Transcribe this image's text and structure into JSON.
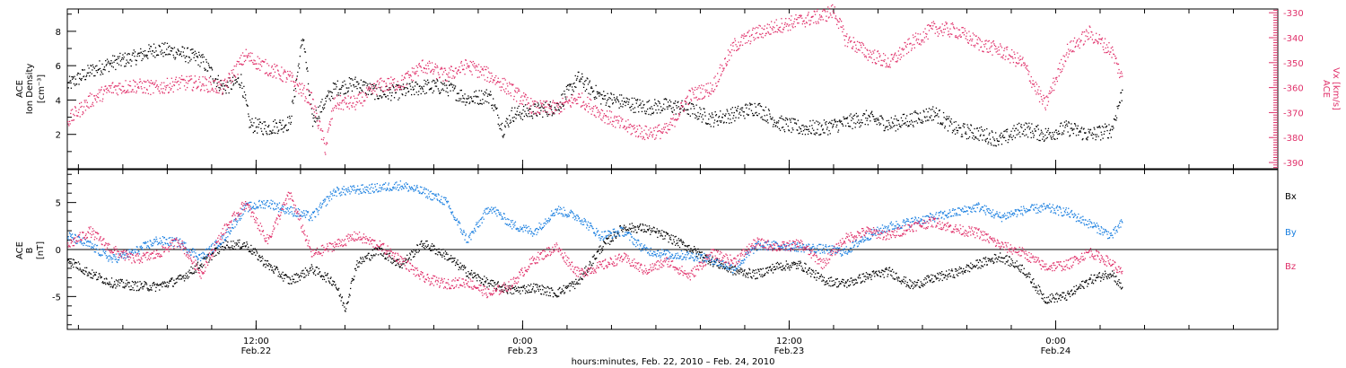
{
  "colors": {
    "black": "#000000",
    "red": "#e0306a",
    "blue": "#1a7fe0"
  },
  "xaxis": {
    "title": "hours:minutes, Feb. 22, 2010 – Feb. 24, 2010",
    "range_hours": [
      0,
      54.5
    ],
    "major_ticks": [
      {
        "hour": 8.5,
        "time": "12:00",
        "date": "Feb.22"
      },
      {
        "hour": 20.5,
        "time": "0:00",
        "date": "Feb.23"
      },
      {
        "hour": 32.5,
        "time": "12:00",
        "date": "Feb.23"
      },
      {
        "hour": 44.5,
        "time": "0:00",
        "date": "Feb.24"
      }
    ]
  },
  "chart_data": [
    {
      "type": "scatter",
      "panel": "top",
      "ylabel_left": [
        "ACE",
        "Ion Density",
        "[cm⁻³]"
      ],
      "ylabel_right": [
        "ACE",
        "Vx [km/s]"
      ],
      "ylim": [
        0,
        9.3
      ],
      "yticks": [
        2,
        4,
        6,
        8
      ],
      "ylim_right": [
        -392.5,
        -328.5
      ],
      "yticks_right": [
        -330,
        -340,
        -350,
        -360,
        -370,
        -380,
        -390
      ],
      "series": [
        {
          "axis": "left",
          "color": "black",
          "x": [
            0.0,
            0.5,
            1.0,
            2.0,
            3.0,
            4.0,
            5.0,
            6.0,
            7.0,
            7.8,
            8.2,
            9.0,
            10.0,
            10.6,
            11.0,
            12.0,
            13.0,
            14.0,
            15.0,
            16.0,
            17.0,
            18.0,
            19.0,
            19.6,
            20.0,
            21.0,
            22.0,
            23.0,
            24.0,
            25.0,
            26.0,
            27.0,
            28.0,
            29.0,
            30.0,
            31.0,
            32.0,
            33.0,
            34.0,
            35.0,
            36.0,
            37.0,
            38.0,
            39.0,
            40.0,
            41.0,
            42.0,
            43.0,
            44.0,
            45.0,
            46.0,
            47.0,
            47.5
          ],
          "y": [
            4.9,
            5.3,
            5.7,
            6.2,
            6.5,
            7.0,
            6.8,
            6.4,
            4.7,
            5.2,
            2.6,
            2.4,
            2.7,
            7.8,
            2.8,
            4.7,
            5.0,
            4.4,
            4.5,
            4.8,
            4.8,
            4.1,
            4.3,
            2.3,
            3.2,
            3.4,
            3.6,
            5.3,
            4.2,
            3.9,
            3.6,
            3.7,
            3.5,
            2.9,
            3.2,
            3.6,
            2.7,
            2.4,
            2.4,
            2.7,
            3.0,
            2.6,
            2.9,
            3.3,
            2.3,
            2.1,
            1.7,
            2.4,
            2.0,
            2.4,
            2.0,
            2.3,
            4.6
          ]
        },
        {
          "axis": "right",
          "color": "red",
          "x": [
            0.0,
            1.0,
            2.0,
            3.0,
            4.0,
            5.0,
            6.0,
            7.0,
            8.0,
            9.0,
            10.0,
            11.0,
            11.6,
            12.0,
            13.0,
            14.0,
            15.0,
            16.0,
            17.0,
            18.0,
            19.0,
            20.0,
            21.0,
            22.0,
            23.0,
            24.0,
            25.0,
            26.0,
            27.0,
            28.0,
            29.0,
            30.0,
            31.0,
            32.0,
            33.0,
            34.0,
            34.5,
            35.0,
            36.0,
            37.0,
            38.0,
            39.0,
            40.0,
            41.0,
            42.0,
            43.0,
            44.0,
            45.0,
            46.0,
            47.0,
            47.5
          ],
          "y": [
            -373,
            -365,
            -360,
            -359,
            -360,
            -358,
            -358,
            -360,
            -347,
            -352,
            -356,
            -365,
            -384,
            -366,
            -366,
            -359,
            -358,
            -351,
            -355,
            -351,
            -355,
            -361,
            -368,
            -368,
            -364,
            -370,
            -375,
            -378,
            -377,
            -363,
            -360,
            -343,
            -338,
            -335,
            -333,
            -331,
            -329,
            -340,
            -346,
            -350,
            -342,
            -336,
            -337,
            -342,
            -345,
            -350,
            -367,
            -345,
            -338,
            -345,
            -357
          ]
        }
      ]
    },
    {
      "type": "scatter",
      "panel": "bottom",
      "ylabel_left": [
        "ACE",
        "B",
        "[nT]"
      ],
      "ylim": [
        -8.5,
        8.5
      ],
      "yticks": [
        -5,
        0,
        5
      ],
      "zero_line": true,
      "series": [
        {
          "name": "Bx",
          "color": "black",
          "x": [
            0.0,
            1.0,
            2.0,
            3.0,
            4.0,
            5.0,
            6.0,
            7.0,
            8.0,
            9.0,
            10.0,
            11.0,
            12.0,
            12.5,
            13.0,
            14.0,
            15.0,
            16.0,
            17.0,
            18.0,
            19.0,
            20.0,
            21.0,
            22.0,
            23.0,
            24.0,
            25.0,
            26.0,
            27.0,
            28.0,
            29.0,
            30.0,
            31.0,
            32.0,
            33.0,
            34.0,
            35.0,
            36.0,
            37.0,
            38.0,
            39.0,
            40.0,
            41.0,
            42.0,
            43.0,
            44.0,
            45.0,
            46.0,
            47.0,
            47.5
          ],
          "y": [
            -1.0,
            -2.5,
            -3.5,
            -3.8,
            -3.9,
            -3.2,
            -1.5,
            0.5,
            0.6,
            -1.6,
            -3.3,
            -2.0,
            -3.4,
            -6.2,
            -1.5,
            0.0,
            -1.6,
            0.7,
            -0.5,
            -2.4,
            -3.6,
            -4.3,
            -4.0,
            -4.6,
            -3.4,
            0.2,
            2.4,
            2.3,
            1.4,
            0.2,
            -1.2,
            -2.2,
            -2.6,
            -1.7,
            -1.6,
            -3.2,
            -3.6,
            -2.8,
            -2.3,
            -3.8,
            -3.0,
            -2.4,
            -1.5,
            -0.7,
            -2.0,
            -5.2,
            -4.9,
            -3.2,
            -2.4,
            -4.2
          ]
        },
        {
          "name": "By",
          "color": "blue",
          "x": [
            0.0,
            1.0,
            2.0,
            3.0,
            4.0,
            5.0,
            6.0,
            7.0,
            8.0,
            9.0,
            10.0,
            11.0,
            12.0,
            13.0,
            14.0,
            15.0,
            16.0,
            17.0,
            18.0,
            19.0,
            20.0,
            21.0,
            22.0,
            23.0,
            24.0,
            25.0,
            26.0,
            27.0,
            28.0,
            29.0,
            30.0,
            31.0,
            32.0,
            33.0,
            34.0,
            35.0,
            36.0,
            37.0,
            38.0,
            39.0,
            40.0,
            41.0,
            42.0,
            43.0,
            44.0,
            45.0,
            46.0,
            47.0,
            47.5
          ],
          "y": [
            1.5,
            0.5,
            -1.0,
            -0.2,
            1.0,
            0.8,
            -0.8,
            1.2,
            4.5,
            5.0,
            4.2,
            3.5,
            6.2,
            6.4,
            6.6,
            6.9,
            6.2,
            5.2,
            1.0,
            4.6,
            2.7,
            1.9,
            4.3,
            3.5,
            1.5,
            2.0,
            0.0,
            -0.5,
            -0.6,
            -1.0,
            -2.0,
            0.4,
            0.5,
            0.3,
            0.1,
            -0.2,
            1.5,
            2.5,
            3.0,
            3.5,
            4.0,
            4.6,
            3.5,
            4.2,
            4.5,
            4.0,
            2.8,
            1.5,
            3.0
          ]
        },
        {
          "name": "Bz",
          "color": "red",
          "x": [
            0.0,
            1.0,
            2.0,
            3.0,
            4.0,
            5.0,
            6.0,
            7.0,
            8.0,
            9.0,
            10.0,
            11.0,
            12.0,
            13.0,
            14.0,
            15.0,
            16.0,
            17.0,
            18.0,
            19.0,
            20.0,
            21.0,
            22.0,
            23.0,
            24.0,
            25.0,
            26.0,
            27.0,
            28.0,
            29.0,
            30.0,
            31.0,
            32.0,
            33.0,
            34.0,
            35.0,
            36.0,
            37.0,
            38.0,
            39.0,
            40.0,
            41.0,
            42.0,
            43.0,
            44.0,
            45.0,
            46.0,
            47.0,
            47.5
          ],
          "y": [
            0.5,
            2.0,
            0.0,
            -1.0,
            -0.5,
            1.0,
            -2.5,
            2.0,
            5.0,
            1.0,
            6.0,
            -0.5,
            0.5,
            1.5,
            0.5,
            -1.0,
            -3.0,
            -3.6,
            -3.4,
            -4.7,
            -3.6,
            -1.0,
            0.3,
            -2.5,
            -1.7,
            -0.8,
            -2.2,
            -1.2,
            -2.8,
            -0.4,
            -1.2,
            0.8,
            0.3,
            0.6,
            -1.5,
            1.2,
            2.0,
            1.5,
            2.5,
            3.0,
            2.2,
            1.8,
            0.5,
            -0.3,
            -1.8,
            -1.6,
            -0.2,
            -1.4,
            -2.6
          ]
        }
      ]
    }
  ]
}
